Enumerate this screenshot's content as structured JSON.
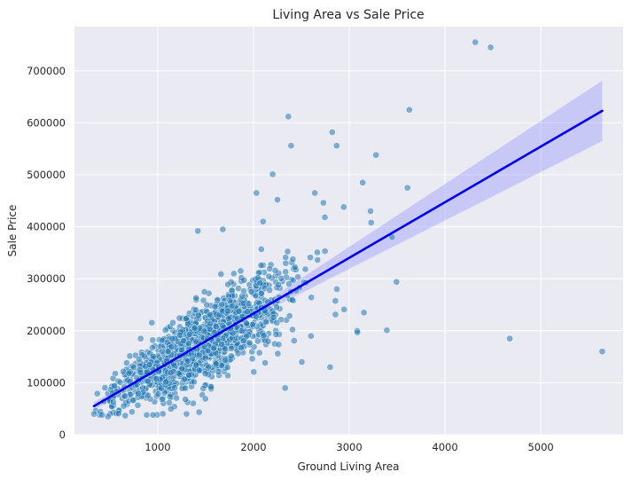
{
  "chart_data": {
    "type": "scatter",
    "title": "Living Area vs Sale Price",
    "xlabel": "Ground Living Area",
    "ylabel": "Sale Price",
    "xlim": [
      130,
      5860
    ],
    "ylim": [
      0,
      785000
    ],
    "xticks": [
      1000,
      2000,
      3000,
      4000,
      5000
    ],
    "yticks": [
      0,
      100000,
      200000,
      300000,
      400000,
      500000,
      600000,
      700000
    ],
    "grid": true,
    "colors": {
      "points": "#1f77b4",
      "regression_line": "#0000ee",
      "confidence_band": "#9999ff",
      "background": "#eaeaf2",
      "grid": "#ffffff"
    },
    "regression": {
      "x": [
        334,
        5642
      ],
      "y": [
        55000,
        623000
      ],
      "ci_lower_at_max": 562000,
      "ci_upper_at_max": 678000,
      "ci_at_min_halfwidth": 8000
    },
    "points": {
      "outliers": [
        [
          4316,
          755000
        ],
        [
          4476,
          745000
        ],
        [
          3627,
          625000
        ],
        [
          2364,
          612000
        ],
        [
          2822,
          582000
        ],
        [
          2392,
          556000
        ],
        [
          2868,
          556000
        ],
        [
          3279,
          538000
        ],
        [
          2200,
          501000
        ],
        [
          3140,
          485000
        ],
        [
          3608,
          475000
        ],
        [
          2030,
          465000
        ],
        [
          2640,
          465000
        ],
        [
          2250,
          452000
        ],
        [
          2942,
          438000
        ],
        [
          3222,
          430000
        ],
        [
          2730,
          446000
        ],
        [
          3447,
          380000
        ],
        [
          3228,
          408000
        ],
        [
          3493,
          294000
        ],
        [
          2946,
          241000
        ],
        [
          3082,
          200000
        ],
        [
          3086,
          197000
        ],
        [
          3392,
          201000
        ],
        [
          4676,
          185000
        ],
        [
          5642,
          160000
        ],
        [
          3153,
          235000
        ],
        [
          1419,
          392000
        ],
        [
          1680,
          395000
        ],
        [
          2100,
          410000
        ],
        [
          2370,
          290000
        ],
        [
          2504,
          140000
        ],
        [
          2330,
          90000
        ],
        [
          1300,
          40000
        ],
        [
          480,
          35000
        ],
        [
          334,
          40000
        ],
        [
          950,
          38000
        ],
        [
          2800,
          130000
        ],
        [
          2600,
          190000
        ],
        [
          2870,
          280000
        ]
      ],
      "cluster": {
        "count": 1360,
        "x_mean": 1480,
        "x_sd": 420,
        "x_min": 334,
        "x_max": 2900,
        "slope": 107,
        "intercept": 19000,
        "noise_sd": 38000
      }
    }
  }
}
